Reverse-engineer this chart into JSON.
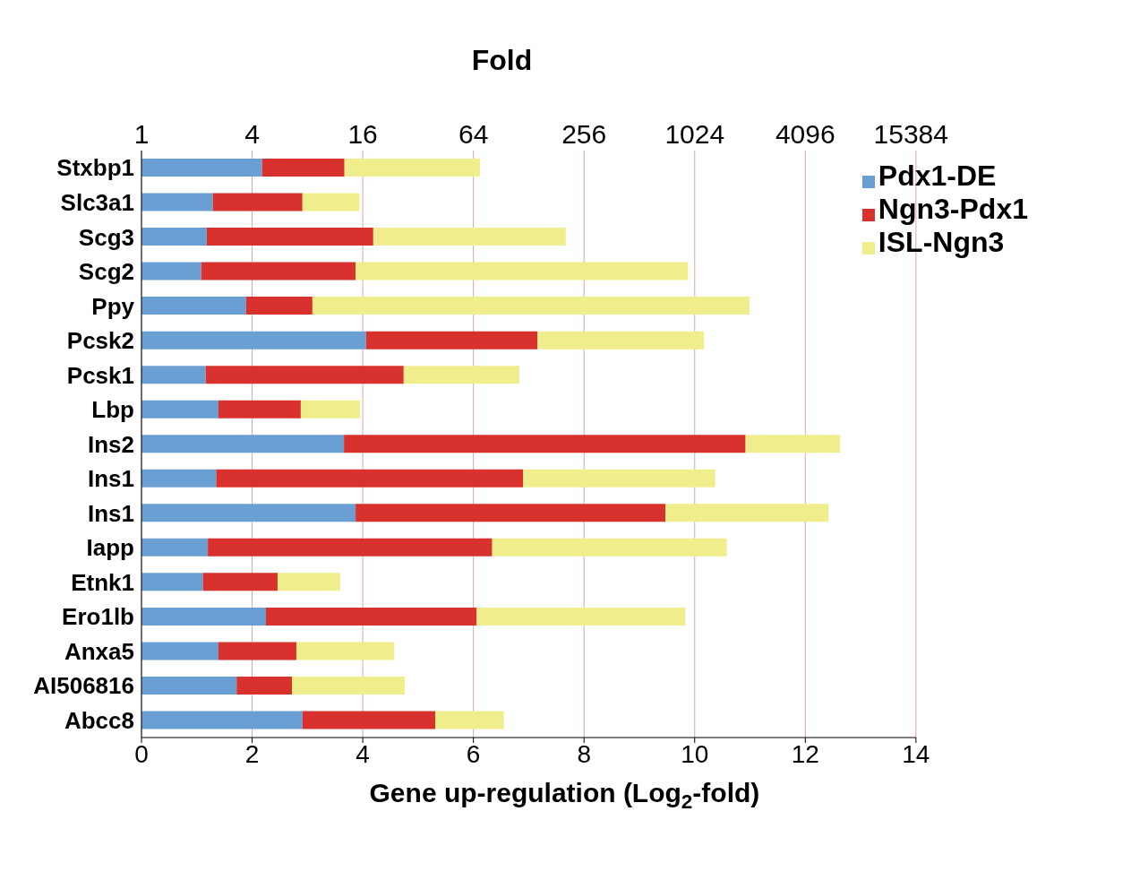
{
  "chart_data": {
    "type": "bar",
    "orientation": "horizontal",
    "stacked": true,
    "x2label": "Fold",
    "xlabel": "Gene up-regulation  (Log$_{2}$-fold)",
    "categories": [
      "Stxbp1",
      "Slc3a1",
      "Scg3",
      "Scg2",
      "Ppy",
      "Pcsk2",
      "Pcsk1",
      "Lbp",
      "Ins2",
      "Ins1",
      "Ins1",
      "Iapp",
      "Etnk1",
      "Ero1lb",
      "Anxa5",
      "AI506816",
      "Abcc8"
    ],
    "series": [
      {
        "name": "Pdx1-DE",
        "color": "#6a9fd4",
        "values": [
          2.18,
          1.29,
          1.18,
          1.08,
          1.89,
          4.06,
          1.16,
          1.39,
          3.66,
          1.35,
          3.87,
          1.2,
          1.11,
          2.25,
          1.39,
          1.72,
          2.91
        ]
      },
      {
        "name": "Ngn3-Pdx1",
        "color": "#d9312d",
        "values": [
          1.49,
          1.62,
          3.01,
          2.79,
          1.2,
          3.1,
          3.58,
          1.49,
          7.26,
          5.55,
          5.6,
          5.14,
          1.35,
          3.81,
          1.41,
          1.0,
          2.4
        ]
      },
      {
        "name": "ISL-Ngn3",
        "color": "#f0ee8c",
        "values": [
          2.45,
          1.03,
          3.48,
          6.01,
          7.9,
          3.01,
          2.09,
          1.07,
          1.71,
          3.47,
          2.95,
          4.24,
          1.13,
          3.77,
          1.77,
          2.04,
          1.24
        ]
      }
    ],
    "xlim": [
      0,
      14
    ],
    "xticks": [
      0,
      2,
      4,
      6,
      8,
      10,
      12,
      14
    ],
    "x2lim": [
      1,
      16384
    ],
    "x2ticks": [
      1,
      4,
      16,
      64,
      256,
      1024,
      4096,
      15384
    ],
    "log": "x2",
    "grid": "x",
    "legend": "top right"
  }
}
